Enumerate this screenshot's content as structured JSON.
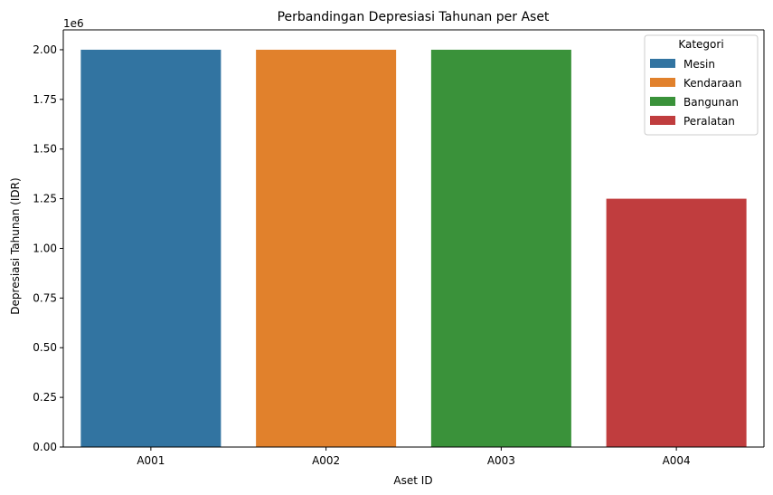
{
  "chart_data": {
    "type": "bar",
    "title": "Perbandingan Depresiasi Tahunan per Aset",
    "xlabel": "Aset ID",
    "ylabel": "Depresiasi Tahunan (IDR)",
    "y_offset_label": "1e6",
    "categories": [
      "A001",
      "A002",
      "A003",
      "A004"
    ],
    "values": [
      2000000,
      2000000,
      2000000,
      1250000
    ],
    "hue": [
      "Mesin",
      "Kendaraan",
      "Bangunan",
      "Peralatan"
    ],
    "colors": [
      "#3274a1",
      "#e1812c",
      "#3a923a",
      "#c03d3e"
    ],
    "ylim": [
      0,
      2100000
    ],
    "yticks": [
      0,
      250000,
      500000,
      750000,
      1000000,
      1250000,
      1500000,
      1750000,
      2000000
    ],
    "ytick_labels": [
      "0.00",
      "0.25",
      "0.50",
      "0.75",
      "1.00",
      "1.25",
      "1.50",
      "1.75",
      "2.00"
    ],
    "grid": false,
    "legend": {
      "title": "Kategori",
      "position": "top-right",
      "entries": [
        "Mesin",
        "Kendaraan",
        "Bangunan",
        "Peralatan"
      ]
    }
  }
}
